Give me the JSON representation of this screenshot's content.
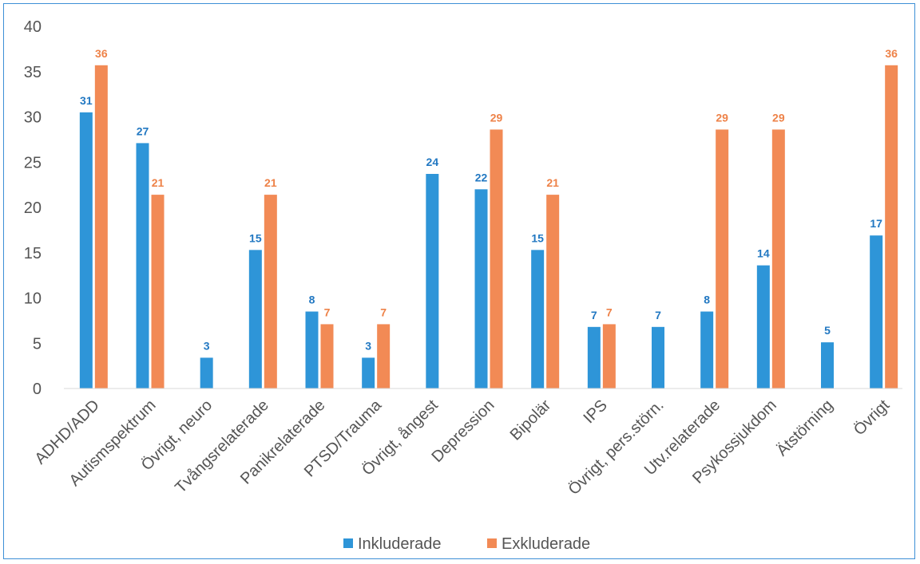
{
  "chart_data": {
    "type": "bar",
    "title": "",
    "xlabel": "",
    "ylabel": "",
    "ylim": [
      0,
      40
    ],
    "yticks": [
      0,
      5,
      10,
      15,
      20,
      25,
      30,
      35,
      40
    ],
    "grid": false,
    "legend_position": "bottom",
    "categories": [
      "ADHD/ADD",
      "Autismspektrum",
      "Övrigt, neuro",
      "Tvångsrelaterade",
      "Panikrelaterade",
      "PTSD/Trauma",
      "Övrigt, ångest",
      "Depression",
      "Bipolär",
      "IPS",
      "Övrigt, pers.störn.",
      "Utv.relaterade",
      "Psykossjukdom",
      "Ätstörning",
      "Övrigt"
    ],
    "series": [
      {
        "name": "Inkluderade",
        "color": "#2e95d8",
        "values": [
          30.5,
          27.1,
          3.4,
          15.3,
          8.5,
          3.4,
          23.7,
          22.0,
          15.3,
          6.8,
          6.8,
          8.5,
          13.6,
          5.1,
          16.9
        ],
        "labels": [
          "31",
          "27",
          "3",
          "15",
          "8",
          "3",
          "24",
          "22",
          "15",
          "7",
          "7",
          "8",
          "14",
          "5",
          "17"
        ]
      },
      {
        "name": "Exkluderade",
        "color": "#f28a55",
        "values": [
          35.7,
          21.4,
          null,
          21.4,
          7.1,
          7.1,
          null,
          28.6,
          21.4,
          7.1,
          null,
          28.6,
          28.6,
          null,
          35.7
        ],
        "labels": [
          "36",
          "21",
          "",
          "21",
          "7",
          "7",
          "",
          "29",
          "21",
          "7",
          "",
          "29",
          "29",
          "",
          "36"
        ]
      }
    ]
  }
}
